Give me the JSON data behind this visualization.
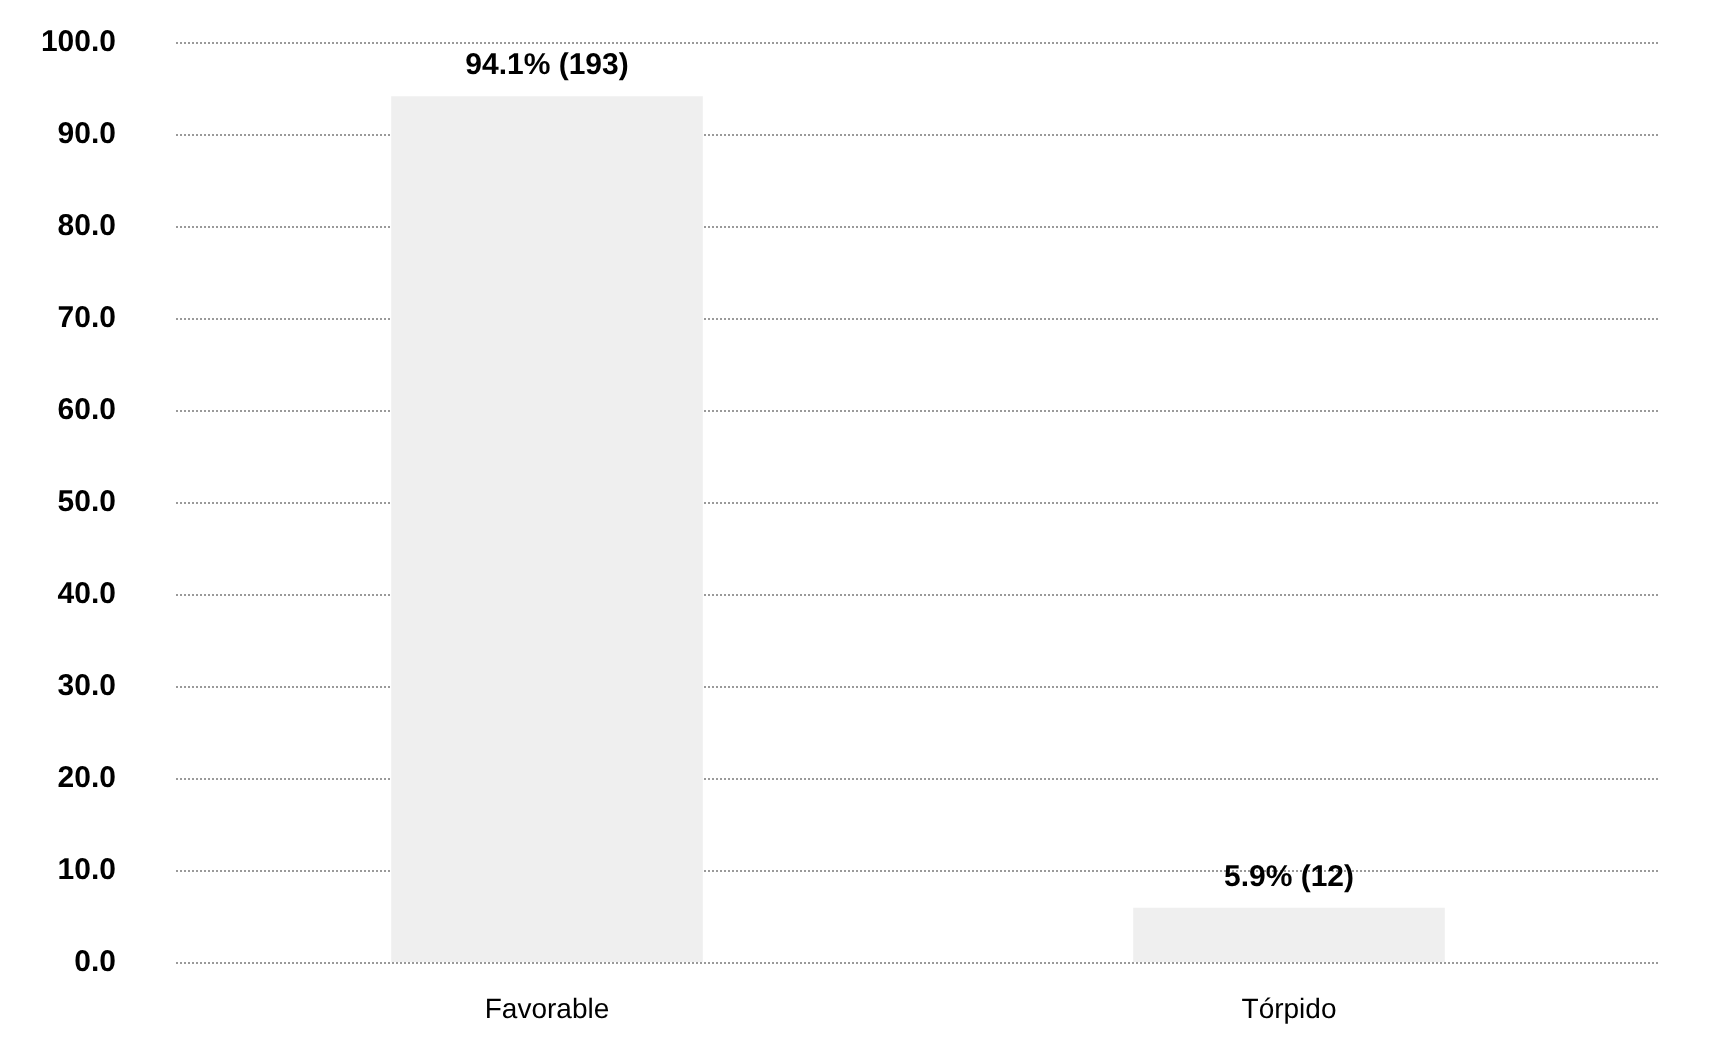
{
  "chart_data": {
    "type": "bar",
    "categories": [
      "Favorable",
      "Tórpido"
    ],
    "values": [
      94.1,
      5.9
    ],
    "value_labels": [
      "94.1% (193)",
      "5.9% (12)"
    ],
    "color": "#efefef",
    "ylim": [
      0,
      100
    ],
    "yticks": [
      {
        "value": 0,
        "label": "0.0"
      },
      {
        "value": 10,
        "label": "10.0"
      },
      {
        "value": 20,
        "label": "20.0"
      },
      {
        "value": 30,
        "label": "30.0"
      },
      {
        "value": 40,
        "label": "40.0"
      },
      {
        "value": 50,
        "label": "50.0"
      },
      {
        "value": 60,
        "label": "60.0"
      },
      {
        "value": 70,
        "label": "70.0"
      },
      {
        "value": 80,
        "label": "80.0"
      },
      {
        "value": 90,
        "label": "90.0"
      },
      {
        "value": 100,
        "label": "100.0"
      }
    ],
    "grid": "y"
  }
}
